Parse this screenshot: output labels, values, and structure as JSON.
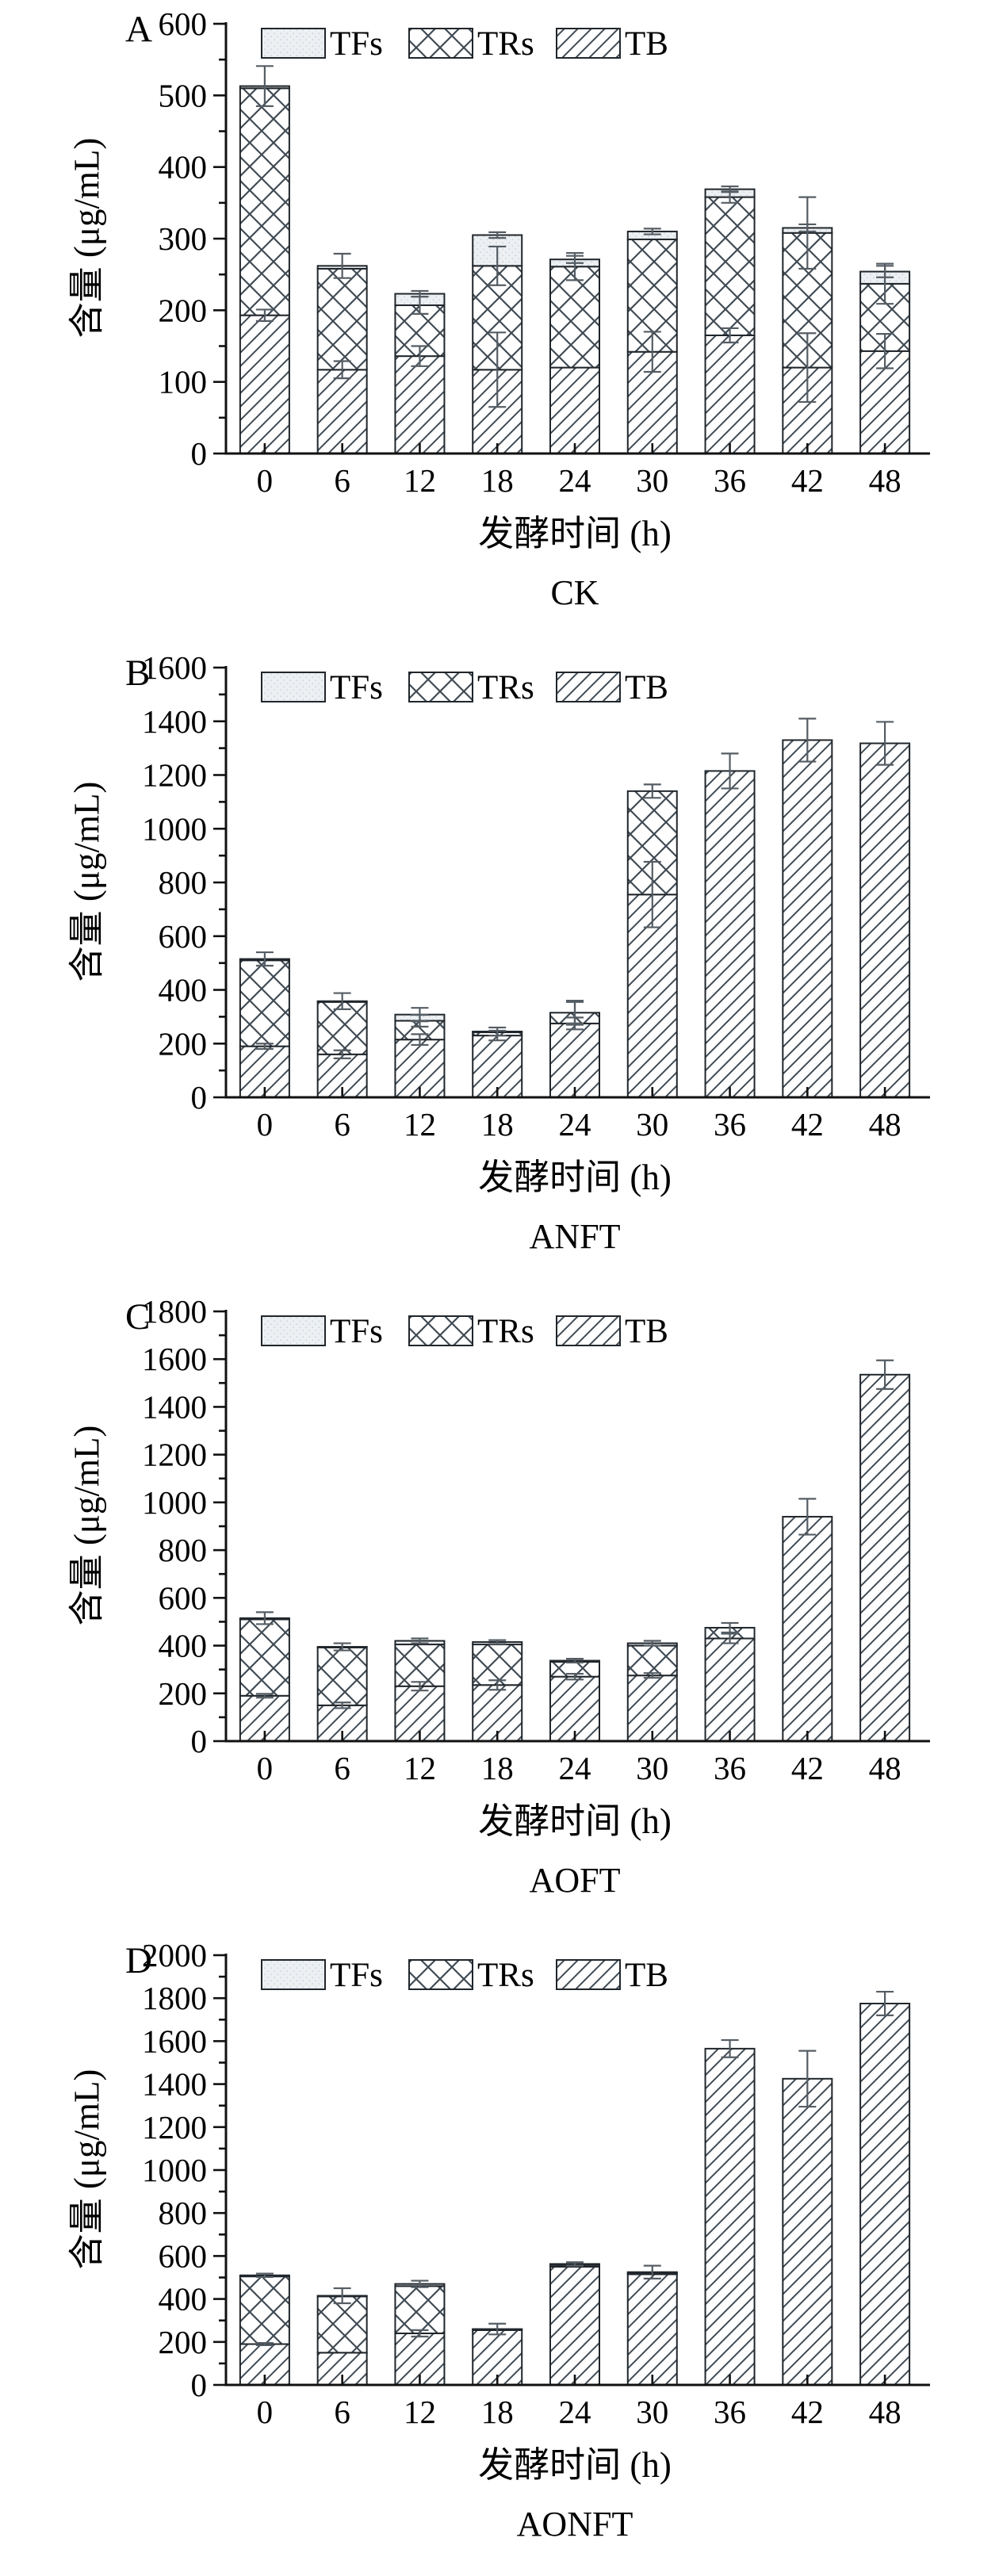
{
  "figure": {
    "ylabel": "含量 (μg/mL)",
    "xlabel": "发酵时间 (h)",
    "legend": [
      "TFs",
      "TRs",
      "TB"
    ],
    "legend_position": "top-left-inside",
    "grid": "off",
    "colors": {
      "background": "#ffffff",
      "axis": "#111111",
      "bar_outline": "#20262b",
      "hatch_line": "#414b54",
      "tfs_fill": "#edf0f3",
      "tfs_dot": "#c3ccd3",
      "error_bar": "#555d64",
      "text": "#000000"
    }
  },
  "chart_data": [
    {
      "type": "bar",
      "stacked": true,
      "panel_letter": "A",
      "group_label": "CK",
      "xlabel": "发酵时间 (h)",
      "ylabel": "含量 (μg/mL)",
      "categories": [
        "0",
        "6",
        "12",
        "18",
        "24",
        "30",
        "36",
        "42",
        "48"
      ],
      "ylim": [
        0,
        600
      ],
      "ytick_step": 100,
      "series": [
        {
          "name": "TB",
          "values": [
            193,
            117,
            136,
            117,
            120,
            142,
            165,
            120,
            143
          ]
        },
        {
          "name": "TRs",
          "values": [
            317,
            141,
            71,
            145,
            141,
            157,
            193,
            188,
            94
          ]
        },
        {
          "name": "TFs",
          "values": [
            3,
            4,
            16,
            43,
            10,
            11,
            11,
            7,
            17
          ]
        }
      ],
      "totals": [
        513,
        262,
        223,
        305,
        271,
        310,
        369,
        315,
        254
      ],
      "tb_err": [
        8,
        12,
        14,
        52,
        0,
        28,
        10,
        48,
        24
      ],
      "trs_err": [
        0,
        0,
        12,
        27,
        19,
        0,
        8,
        50,
        28
      ],
      "total_err": [
        28,
        17,
        4,
        4,
        5,
        4,
        4,
        5,
        8
      ]
    },
    {
      "type": "bar",
      "stacked": true,
      "panel_letter": "B",
      "group_label": "ANFT",
      "xlabel": "发酵时间 (h)",
      "ylabel": "含量 (μg/mL)",
      "categories": [
        "0",
        "6",
        "12",
        "18",
        "24",
        "30",
        "36",
        "42",
        "48"
      ],
      "ylim": [
        0,
        1600
      ],
      "ytick_step": 200,
      "series": [
        {
          "name": "TB",
          "values": [
            190,
            160,
            215,
            230,
            275,
            755,
            1215,
            1330,
            1318
          ]
        },
        {
          "name": "TRs",
          "values": [
            320,
            195,
            70,
            12,
            40,
            385,
            0,
            0,
            0
          ]
        },
        {
          "name": "TFs",
          "values": [
            5,
            3,
            23,
            3,
            0,
            0,
            0,
            0,
            0
          ]
        }
      ],
      "totals": [
        515,
        358,
        308,
        245,
        315,
        1140,
        1215,
        1330,
        1318
      ],
      "tb_err": [
        10,
        15,
        20,
        18,
        22,
        122,
        0,
        0,
        0
      ],
      "trs_err": [
        0,
        0,
        22,
        0,
        40,
        0,
        0,
        0,
        0
      ],
      "total_err": [
        25,
        30,
        25,
        15,
        45,
        25,
        65,
        80,
        80
      ]
    },
    {
      "type": "bar",
      "stacked": true,
      "panel_letter": "C",
      "group_label": "AOFT",
      "xlabel": "发酵时间 (h)",
      "ylabel": "含量 (μg/mL)",
      "categories": [
        "0",
        "6",
        "12",
        "18",
        "24",
        "30",
        "36",
        "42",
        "48"
      ],
      "ylim": [
        0,
        1800
      ],
      "ytick_step": 200,
      "series": [
        {
          "name": "TB",
          "values": [
            190,
            150,
            230,
            235,
            270,
            275,
            430,
            940,
            1535
          ]
        },
        {
          "name": "TRs",
          "values": [
            320,
            242,
            175,
            170,
            62,
            125,
            45,
            0,
            0
          ]
        },
        {
          "name": "TFs",
          "values": [
            5,
            3,
            15,
            10,
            5,
            10,
            0,
            0,
            0
          ]
        }
      ],
      "totals": [
        515,
        395,
        420,
        415,
        337,
        410,
        475,
        940,
        1535
      ],
      "tb_err": [
        8,
        12,
        18,
        20,
        12,
        10,
        20,
        0,
        0
      ],
      "trs_err": [
        0,
        0,
        0,
        0,
        0,
        0,
        0,
        0,
        0
      ],
      "total_err": [
        25,
        15,
        10,
        8,
        8,
        10,
        20,
        75,
        60
      ]
    },
    {
      "type": "bar",
      "stacked": true,
      "panel_letter": "D",
      "group_label": "AONFT",
      "xlabel": "发酵时间 (h)",
      "ylabel": "含量 (μg/mL)",
      "categories": [
        "0",
        "6",
        "12",
        "18",
        "24",
        "30",
        "36",
        "42",
        "48"
      ],
      "ylim": [
        0,
        2000
      ],
      "ytick_step": 200,
      "series": [
        {
          "name": "TB",
          "values": [
            190,
            150,
            240,
            255,
            550,
            515,
            1565,
            1425,
            1775
          ]
        },
        {
          "name": "TRs",
          "values": [
            315,
            262,
            220,
            3,
            8,
            5,
            0,
            0,
            0
          ]
        },
        {
          "name": "TFs",
          "values": [
            5,
            3,
            10,
            2,
            5,
            5,
            0,
            0,
            0
          ]
        }
      ],
      "totals": [
        510,
        415,
        470,
        260,
        563,
        525,
        1565,
        1425,
        1775
      ],
      "tb_err": [
        5,
        0,
        15,
        0,
        0,
        0,
        0,
        0,
        0
      ],
      "trs_err": [
        0,
        0,
        0,
        0,
        0,
        0,
        0,
        0,
        0
      ],
      "total_err": [
        8,
        35,
        15,
        25,
        8,
        30,
        40,
        130,
        55
      ]
    }
  ]
}
